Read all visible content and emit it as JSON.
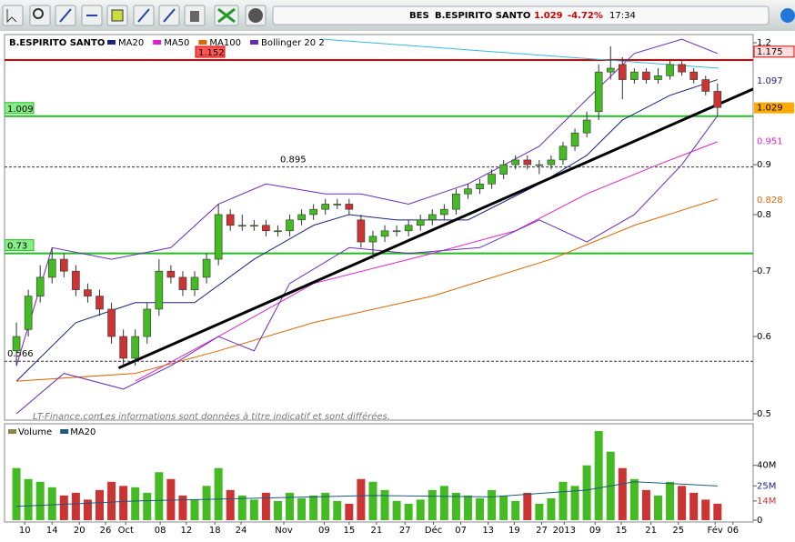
{
  "toolbar": {
    "symbol": "BES",
    "name": "B.ESPIRITO SANTO",
    "price": "1.029",
    "change": "-4.72%",
    "time": "17:34"
  },
  "chart_data": [
    {
      "type": "candlestick",
      "title": "B.ESPIRITO SANTO",
      "log_scale": true,
      "ylim": [
        0.5,
        1.2
      ],
      "yticks": [
        0.5,
        0.6,
        0.7,
        0.8,
        0.9,
        1.2
      ],
      "xlim": [
        -1,
        62
      ],
      "xticks": [
        {
          "value": 0.7,
          "label": "10"
        },
        {
          "value": 3.0,
          "label": "14"
        },
        {
          "value": 5.3,
          "label": "20"
        },
        {
          "value": 7.5,
          "label": "26"
        },
        {
          "value": 9.2,
          "label": "Oct"
        },
        {
          "value": 12.1,
          "label": "08"
        },
        {
          "value": 14.3,
          "label": "12"
        },
        {
          "value": 16.7,
          "label": "18"
        },
        {
          "value": 18.9,
          "label": "24"
        },
        {
          "value": 22.5,
          "label": "Nov"
        },
        {
          "value": 25.9,
          "label": "09"
        },
        {
          "value": 28.0,
          "label": "15"
        },
        {
          "value": 30.3,
          "label": "21"
        },
        {
          "value": 32.7,
          "label": "27"
        },
        {
          "value": 35.1,
          "label": "Déc"
        },
        {
          "value": 37.4,
          "label": "07"
        },
        {
          "value": 39.7,
          "label": "13"
        },
        {
          "value": 41.9,
          "label": "19"
        },
        {
          "value": 44.2,
          "label": "27"
        },
        {
          "value": 46.1,
          "label": "2013"
        },
        {
          "value": 48.7,
          "label": "09"
        },
        {
          "value": 50.9,
          "label": "15"
        },
        {
          "value": 53.4,
          "label": "21"
        },
        {
          "value": 55.7,
          "label": "25"
        },
        {
          "value": 58.8,
          "label": "Fév"
        },
        {
          "value": 60.3,
          "label": "06"
        }
      ],
      "up_color": "#44bb22",
      "down_color": "#cc3333",
      "open": [
        0.58,
        0.61,
        0.66,
        0.69,
        0.72,
        0.7,
        0.67,
        0.66,
        0.64,
        0.6,
        0.57,
        0.6,
        0.64,
        0.7,
        0.69,
        0.67,
        0.69,
        0.72,
        0.8,
        0.78,
        0.78,
        0.78,
        0.77,
        0.77,
        0.79,
        0.8,
        0.81,
        0.82,
        0.82,
        0.79,
        0.75,
        0.76,
        0.77,
        0.77,
        0.78,
        0.79,
        0.8,
        0.81,
        0.84,
        0.85,
        0.86,
        0.88,
        0.9,
        0.91,
        0.9,
        0.9,
        0.91,
        0.94,
        0.97,
        1.02,
        1.12,
        1.14,
        1.1,
        1.12,
        1.1,
        1.11,
        1.14,
        1.12,
        1.1,
        1.07
      ],
      "high": [
        0.62,
        0.67,
        0.71,
        0.74,
        0.73,
        0.71,
        0.68,
        0.67,
        0.65,
        0.61,
        0.61,
        0.65,
        0.72,
        0.71,
        0.7,
        0.7,
        0.73,
        0.82,
        0.81,
        0.8,
        0.79,
        0.79,
        0.78,
        0.8,
        0.81,
        0.82,
        0.83,
        0.83,
        0.83,
        0.8,
        0.77,
        0.78,
        0.78,
        0.79,
        0.8,
        0.81,
        0.82,
        0.85,
        0.86,
        0.87,
        0.89,
        0.91,
        0.92,
        0.92,
        0.91,
        0.92,
        0.95,
        0.98,
        1.02,
        1.14,
        1.19,
        1.16,
        1.13,
        1.13,
        1.13,
        1.15,
        1.15,
        1.13,
        1.11,
        1.09
      ],
      "low": [
        0.56,
        0.6,
        0.65,
        0.68,
        0.69,
        0.66,
        0.65,
        0.63,
        0.59,
        0.56,
        0.56,
        0.59,
        0.63,
        0.68,
        0.66,
        0.66,
        0.68,
        0.71,
        0.77,
        0.77,
        0.77,
        0.76,
        0.76,
        0.76,
        0.78,
        0.79,
        0.8,
        0.81,
        0.8,
        0.74,
        0.72,
        0.75,
        0.76,
        0.76,
        0.77,
        0.78,
        0.79,
        0.8,
        0.83,
        0.84,
        0.85,
        0.87,
        0.89,
        0.89,
        0.88,
        0.89,
        0.9,
        0.93,
        0.96,
        1.0,
        1.1,
        1.05,
        1.09,
        1.09,
        1.09,
        1.1,
        1.11,
        1.09,
        1.06,
        1.01
      ],
      "close": [
        0.6,
        0.66,
        0.69,
        0.72,
        0.7,
        0.67,
        0.66,
        0.64,
        0.6,
        0.57,
        0.6,
        0.64,
        0.7,
        0.69,
        0.67,
        0.69,
        0.72,
        0.8,
        0.78,
        0.78,
        0.78,
        0.77,
        0.77,
        0.79,
        0.8,
        0.81,
        0.82,
        0.82,
        0.81,
        0.75,
        0.76,
        0.77,
        0.77,
        0.78,
        0.79,
        0.8,
        0.81,
        0.84,
        0.85,
        0.86,
        0.88,
        0.9,
        0.91,
        0.9,
        0.9,
        0.91,
        0.94,
        0.97,
        1.0,
        1.12,
        1.13,
        1.1,
        1.12,
        1.1,
        1.11,
        1.14,
        1.12,
        1.1,
        1.07,
        1.03
      ],
      "series": [
        {
          "name": "MA20",
          "color": "#1a237e",
          "x": [
            0,
            5,
            10,
            15,
            20,
            25,
            28,
            32,
            38,
            44,
            48,
            51,
            55,
            59
          ],
          "values": [
            0.54,
            0.62,
            0.65,
            0.65,
            0.72,
            0.78,
            0.8,
            0.79,
            0.79,
            0.86,
            0.92,
            1.0,
            1.06,
            1.1
          ]
        },
        {
          "name": "MA50",
          "color": "#dd22cc",
          "x": [
            10,
            17,
            25,
            35,
            42,
            48,
            54,
            59
          ],
          "values": [
            0.54,
            0.6,
            0.68,
            0.73,
            0.77,
            0.84,
            0.9,
            0.95
          ]
        },
        {
          "name": "MA100",
          "color": "#dd6600",
          "x": [
            0,
            10,
            17,
            25,
            35,
            45,
            52,
            59
          ],
          "values": [
            0.54,
            0.55,
            0.58,
            0.62,
            0.66,
            0.72,
            0.78,
            0.83
          ]
        },
        {
          "name": "Bollinger 20 2",
          "color": "#6a2bb8",
          "x": [
            0,
            3,
            8,
            13,
            17,
            21,
            26,
            29,
            33,
            38,
            44,
            48,
            52,
            56,
            59
          ],
          "values": [
            0.56,
            0.74,
            0.72,
            0.74,
            0.82,
            0.86,
            0.84,
            0.84,
            0.82,
            0.86,
            0.94,
            1.05,
            1.17,
            1.21,
            1.17
          ],
          "lower": {
            "x": [
              0,
              4,
              9,
              13,
              17,
              20,
              23,
              28,
              33,
              39,
              44,
              48,
              52,
              56,
              59
            ],
            "values": [
              0.5,
              0.55,
              0.53,
              0.56,
              0.6,
              0.58,
              0.68,
              0.74,
              0.73,
              0.74,
              0.79,
              0.75,
              0.8,
              0.9,
              1.01
            ]
          }
        }
      ],
      "trendlines": [
        {
          "color": "#000000",
          "width": 3,
          "x": [
            8.6,
            62
          ],
          "values": [
            0.557,
            1.076
          ]
        },
        {
          "color": "#33bbdd",
          "width": 1,
          "x": [
            25.8,
            59.1
          ],
          "values": [
            1.21,
            1.13
          ]
        }
      ],
      "levels": [
        {
          "value": 1.152,
          "color": "#dd0000",
          "style": "solid",
          "label_bg": "#ff5555"
        },
        {
          "value": 1.009,
          "color": "#22bb22",
          "style": "solid",
          "label_bg": "#88ee88"
        },
        {
          "value": 0.895,
          "color": "#333333",
          "style": "dashed"
        },
        {
          "value": 0.73,
          "color": "#22bb22",
          "style": "solid",
          "label_bg": "#88ee88"
        },
        {
          "value": 0.566,
          "color": "#333333",
          "style": "dashed"
        }
      ],
      "axis_markers": [
        {
          "value": 1.175,
          "color": "#000000",
          "bg": "#ffdddd",
          "border": "#dd0000"
        },
        {
          "value": 1.097,
          "color": "#1a237e",
          "bg": "#ffffff"
        },
        {
          "value": 1.029,
          "color": "#000000",
          "bg": "#ffaa00"
        },
        {
          "value": 0.951,
          "color": "#dd22cc",
          "bg": "#ffffff"
        },
        {
          "value": 0.828,
          "color": "#dd6600",
          "bg": "#ffffff"
        }
      ],
      "watermark": "LT-Finance.com",
      "disclaimer": "Les informations sont données à titre indicatif et sont différées."
    },
    {
      "type": "bar",
      "ylim": [
        0,
        69
      ],
      "yticks": [
        0,
        {
          "value": 14,
          "label": "14M",
          "color": "#cc3333"
        },
        {
          "value": 25,
          "label": "25M",
          "color": "#1a237e"
        },
        {
          "value": 40,
          "label": "40M"
        }
      ],
      "series": [
        {
          "name": "Volume",
          "color": "#888844",
          "values": [
            38,
            30,
            28,
            24,
            18,
            20,
            15,
            22,
            28,
            25,
            24,
            20,
            35,
            30,
            18,
            15,
            25,
            38,
            22,
            18,
            15,
            20,
            14,
            20,
            16,
            18,
            20,
            14,
            12,
            30,
            28,
            22,
            14,
            12,
            15,
            22,
            25,
            20,
            18,
            16,
            22,
            18,
            14,
            20,
            12,
            16,
            28,
            25,
            40,
            65,
            50,
            38,
            30,
            22,
            18,
            28,
            25,
            20,
            15,
            12
          ]
        },
        {
          "name": "MA20",
          "color": "#1a5a7e",
          "x": [
            0,
            10,
            20,
            30,
            40,
            48,
            52,
            59
          ],
          "values": [
            10,
            14,
            16,
            18,
            17,
            22,
            28,
            25
          ]
        }
      ]
    }
  ]
}
